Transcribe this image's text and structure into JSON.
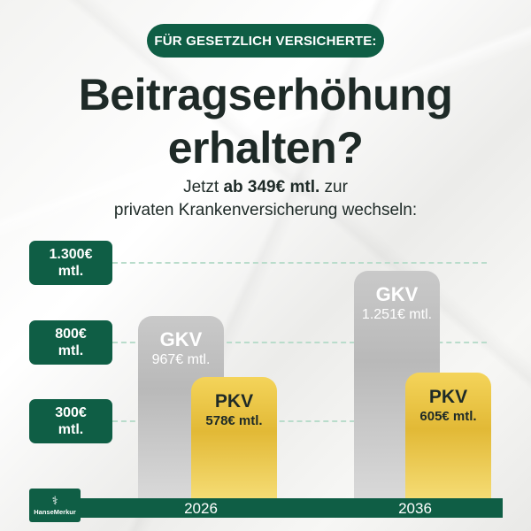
{
  "header": {
    "pill": "FÜR GESETZLICH VERSICHERTE:",
    "headline_line1": "Beitragserhöhung",
    "headline_line2": "erhalten?",
    "sub_part1": "Jetzt ",
    "sub_bold": "ab 349€ mtl.",
    "sub_part2": " zur",
    "sub_line2": "privaten Krankenversicherung wechseln:"
  },
  "brand": {
    "name": "HanseMerkur",
    "icon": "hansemerkur-logo-icon",
    "color": "#0f5e45"
  },
  "colors": {
    "accent": "#0f5e45",
    "gkv": "#bdbdbd",
    "pkv": "#e8c23e"
  },
  "chart_data": {
    "type": "bar",
    "title": "",
    "xlabel": "",
    "ylabel": "",
    "categories": [
      "2026",
      "2036"
    ],
    "series": [
      {
        "name": "GKV",
        "values": [
          967,
          1251
        ],
        "labels": [
          "967€ mtl.",
          "1.251€ mtl."
        ]
      },
      {
        "name": "PKV",
        "values": [
          578,
          605
        ],
        "labels": [
          "578€ mtl.",
          "605€ mtl."
        ]
      }
    ],
    "y_ticks": [
      {
        "value": 1300,
        "line1": "1.300€",
        "line2": "mtl."
      },
      {
        "value": 800,
        "line1": "800€",
        "line2": "mtl."
      },
      {
        "value": 300,
        "line1": "300€",
        "line2": "mtl."
      }
    ],
    "ylim": [
      0,
      1400
    ],
    "grid": true
  }
}
